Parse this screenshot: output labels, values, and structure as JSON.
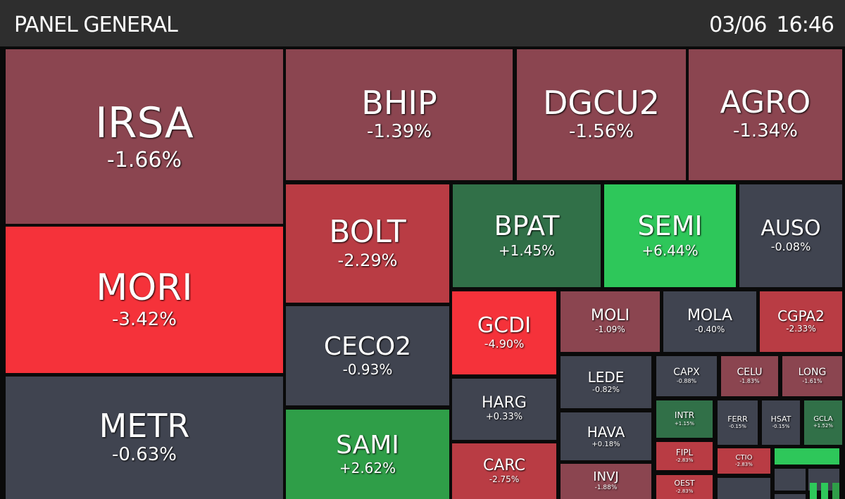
{
  "header": {
    "title": "PANEL GENERAL",
    "date": "03/06",
    "time": "16:46"
  },
  "colors": {
    "dark_red": "#8b4550",
    "red": "#b93c44",
    "bright_red": "#f5323a",
    "neutral": "#404450",
    "dark_green": "#317048",
    "green": "#2f9e48",
    "bright_green": "#2ec75a"
  },
  "tiles": [
    {
      "symbol": "IRSA",
      "change": "-1.66%",
      "color": "#8b4550"
    },
    {
      "symbol": "MORI",
      "change": "-3.42%",
      "color": "#f5323a"
    },
    {
      "symbol": "METR",
      "change": "-0.63%",
      "color": "#404450"
    },
    {
      "symbol": "BHIP",
      "change": "-1.39%",
      "color": "#8b4550"
    },
    {
      "symbol": "DGCU2",
      "change": "-1.56%",
      "color": "#8b4550"
    },
    {
      "symbol": "AGRO",
      "change": "-1.34%",
      "color": "#8b4550"
    },
    {
      "symbol": "BOLT",
      "change": "-2.29%",
      "color": "#b93c44"
    },
    {
      "symbol": "BPAT",
      "change": "+1.45%",
      "color": "#317048"
    },
    {
      "symbol": "SEMI",
      "change": "+6.44%",
      "color": "#2ec75a"
    },
    {
      "symbol": "AUSO",
      "change": "-0.08%",
      "color": "#404450"
    },
    {
      "symbol": "CECO2",
      "change": "-0.93%",
      "color": "#404450"
    },
    {
      "symbol": "SAMI",
      "change": "+2.62%",
      "color": "#2f9e48"
    },
    {
      "symbol": "GCDI",
      "change": "-4.90%",
      "color": "#f5323a"
    },
    {
      "symbol": "HARG",
      "change": "+0.33%",
      "color": "#404450"
    },
    {
      "symbol": "CARC",
      "change": "-2.75%",
      "color": "#b93c44"
    },
    {
      "symbol": "MOLI",
      "change": "-1.09%",
      "color": "#8b4550"
    },
    {
      "symbol": "MOLA",
      "change": "-0.40%",
      "color": "#404450"
    },
    {
      "symbol": "CGPA2",
      "change": "-2.33%",
      "color": "#b93c44"
    },
    {
      "symbol": "LEDE",
      "change": "-0.82%",
      "color": "#404450"
    },
    {
      "symbol": "HAVA",
      "change": "+0.18%",
      "color": "#404450"
    },
    {
      "symbol": "INVJ",
      "change": "-1.88%",
      "color": "#8b4550"
    },
    {
      "symbol": "CAPX",
      "change": "-0.88%",
      "color": "#404450"
    },
    {
      "symbol": "CELU",
      "change": "-1.83%",
      "color": "#8b4550"
    },
    {
      "symbol": "LONG",
      "change": "-1.61%",
      "color": "#8b4550"
    },
    {
      "symbol": "INTR",
      "change": "+1.15%",
      "color": "#317048"
    },
    {
      "symbol": "FERR",
      "change": "-0.15%",
      "color": "#404450"
    },
    {
      "symbol": "HSAT",
      "change": "-0.15%",
      "color": "#404450"
    },
    {
      "symbol": "GCLA",
      "change": "+1.52%",
      "color": "#317048"
    },
    {
      "symbol": "FIPL",
      "change": "-2.83%",
      "color": "#b93c44"
    },
    {
      "symbol": "OEST",
      "change": "-2.83%",
      "color": "#b93c44"
    },
    {
      "symbol": "CTIO",
      "change": "-2.83%",
      "color": "#b93c44"
    },
    {
      "symbol": "",
      "change": "",
      "color": "#2ec75a"
    },
    {
      "symbol": "",
      "change": "",
      "color": "#404450"
    },
    {
      "symbol": "",
      "change": "",
      "color": "#404450"
    },
    {
      "symbol": "",
      "change": "",
      "color": "#404450"
    },
    {
      "symbol": "",
      "change": "",
      "color": "#404450"
    },
    {
      "symbol": "",
      "change": "",
      "color": "#2ec75a"
    },
    {
      "symbol": "",
      "change": "",
      "color": "#2ec75a"
    },
    {
      "symbol": "",
      "change": "",
      "color": "#2f9e48"
    }
  ]
}
